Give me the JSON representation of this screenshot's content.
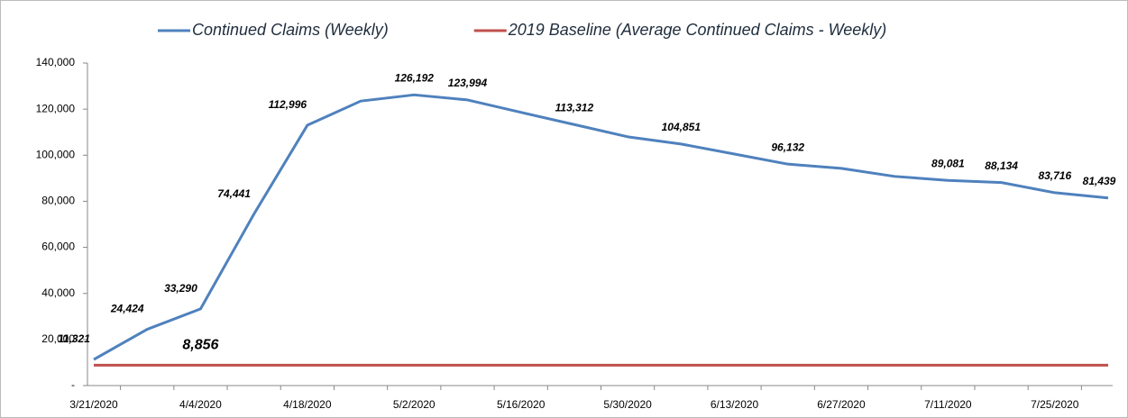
{
  "chart_data": {
    "type": "line",
    "categories": [
      "3/21/2020",
      null,
      "4/4/2020",
      null,
      "4/18/2020",
      null,
      "5/2/2020",
      null,
      "5/16/2020",
      null,
      "5/30/2020",
      null,
      "6/13/2020",
      null,
      "6/27/2020",
      null,
      "7/11/2020",
      null,
      "7/25/2020",
      null
    ],
    "series": [
      {
        "name": "Continued Claims (Weekly)",
        "color": "#4f81bd",
        "values": [
          11321,
          24424,
          33290,
          74441,
          112996,
          123500,
          126192,
          123994,
          118600,
          113312,
          108000,
          104851,
          100500,
          96132,
          94300,
          90800,
          89081,
          88134,
          83716,
          81439
        ],
        "value_labels": [
          "11,321",
          "24,424",
          "33,290",
          "74,441",
          "112,996",
          null,
          "126,192",
          "123,994",
          null,
          "113,312",
          null,
          "104,851",
          null,
          "96,132",
          null,
          null,
          "89,081",
          "88,134",
          "83,716",
          "81,439"
        ]
      },
      {
        "name": "2019 Baseline (Average Continued Claims - Weekly)",
        "color": "#c0504d",
        "values": [
          8856,
          8856,
          8856,
          8856,
          8856,
          8856,
          8856,
          8856,
          8856,
          8856,
          8856,
          8856,
          8856,
          8856,
          8856,
          8856,
          8856,
          8856,
          8856,
          8856
        ],
        "value_labels": [
          null,
          null,
          "8,856",
          null,
          null,
          null,
          null,
          null,
          null,
          null,
          null,
          null,
          null,
          null,
          null,
          null,
          null,
          null,
          null,
          null
        ]
      }
    ],
    "ylim": [
      0,
      140000
    ],
    "yticks": [
      {
        "value": 0,
        "label": "-"
      },
      {
        "value": 20000,
        "label": "20,000"
      },
      {
        "value": 40000,
        "label": "40,000"
      },
      {
        "value": 60000,
        "label": "60,000"
      },
      {
        "value": 80000,
        "label": "80,000"
      },
      {
        "value": 100000,
        "label": "100,000"
      },
      {
        "value": 120000,
        "label": "120,000"
      },
      {
        "value": 140000,
        "label": "140,000"
      }
    ],
    "legend": "top"
  }
}
